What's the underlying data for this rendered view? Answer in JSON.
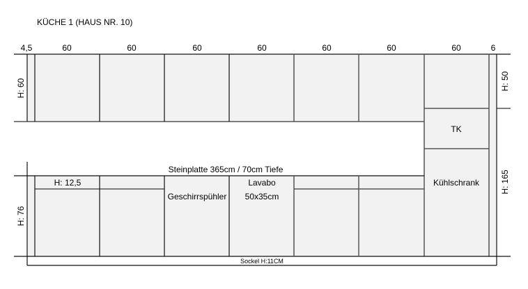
{
  "title": "KÜCHE 1 (HAUS NR. 10)",
  "widths": [
    "4,5",
    "60",
    "60",
    "60",
    "60",
    "60",
    "60",
    "60",
    "6"
  ],
  "heights": {
    "upper_left": "H: 60",
    "lower_left": "H: 76",
    "upper_right": "H: 50",
    "lower_right": "H: 165"
  },
  "labels": {
    "countertop": "Steinplatte 365cm / 70cm Tiefe",
    "drawer_height": "H: 12,5",
    "dishwasher": "Geschirrspühler",
    "sink_title": "Lavabo",
    "sink_size": "50x35cm",
    "freezer": "TK",
    "fridge": "Kühlschrank",
    "plinth": "Sockel H:11CM"
  },
  "colors": {
    "cabinet_fill": "#f2f2f2",
    "line": "#111111"
  }
}
